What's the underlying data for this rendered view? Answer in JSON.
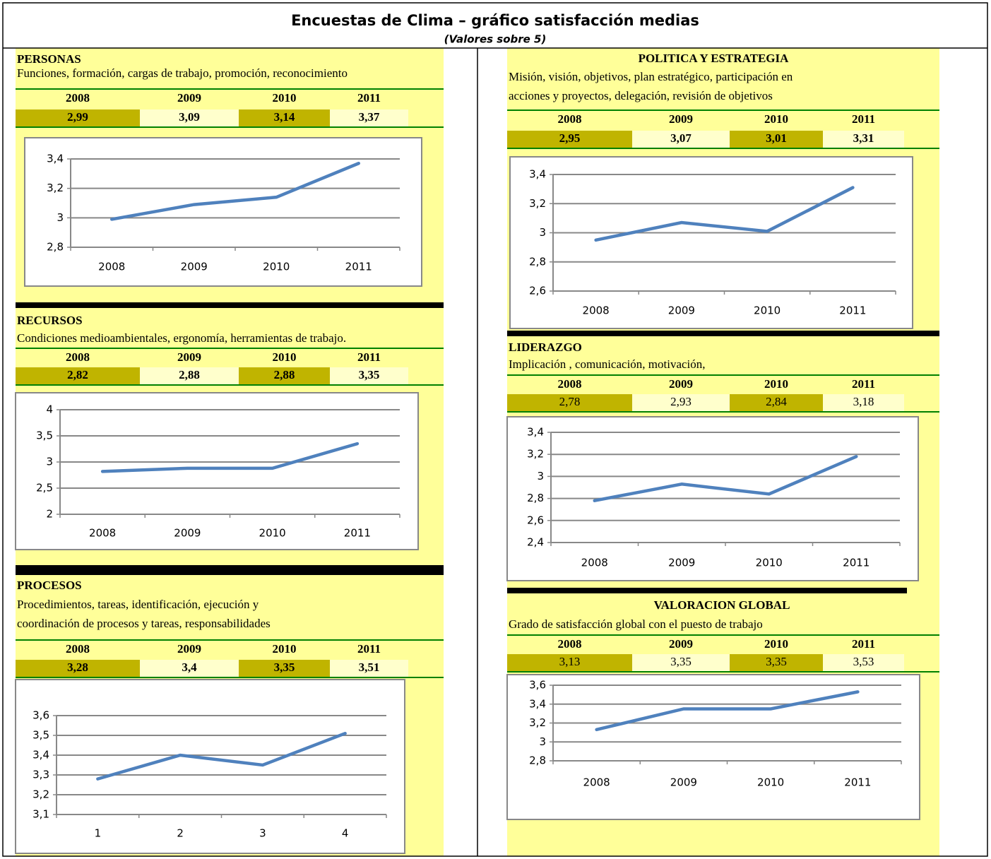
{
  "title": "Encuestas de Clima – gráfico satisfacción medias",
  "subtitle": "(Valores sobre 5)",
  "sections": [
    {
      "heading": "PERSONAS",
      "description": [
        "Funciones, formación, cargas de trabajo, promoción, reconocimiento"
      ],
      "table": {
        "header": [
          "2008",
          "2009",
          "2010",
          "2011"
        ],
        "row": [
          "2,99",
          "3,09",
          "3,14",
          "3,37"
        ]
      }
    },
    {
      "heading": "RECURSOS",
      "description": [
        "Condiciones medioambientales, ergonomía, herramientas de trabajo."
      ],
      "table": {
        "header": [
          "2008",
          "2009",
          "2010",
          "2011"
        ],
        "row": [
          "2,82",
          "2,88",
          "2,88",
          "3,35"
        ]
      }
    },
    {
      "heading": "PROCESOS",
      "description": [
        "Procedimientos, tareas, identificación, ejecución y",
        "coordinación de procesos y tareas, responsabilidades"
      ],
      "table": {
        "header": [
          "2008",
          "2009",
          "2010",
          "2011"
        ],
        "row": [
          "3,28",
          "3,4",
          "3,35",
          "3,51"
        ]
      }
    },
    {
      "heading": "POLITICA Y ESTRATEGIA",
      "description": [
        "Misión, visión, objetivos, plan estratégico, participación en",
        "acciones y proyectos, delegación, revisión de objetivos"
      ],
      "table": {
        "header": [
          "2008",
          "2009",
          "2010",
          "2011"
        ],
        "row": [
          "2,95",
          "3,07",
          "3,01",
          "3,31"
        ]
      }
    },
    {
      "heading": "LIDERAZGO",
      "description": [
        "Implicación , comunicación, motivación,"
      ],
      "table": {
        "header": [
          "2008",
          "2009",
          "2010",
          "2011"
        ],
        "row": [
          "2,78",
          "2,93",
          "2,84",
          "3,18"
        ]
      }
    },
    {
      "heading": "VALORACION GLOBAL",
      "description": [
        "Grado de satisfacción global con el puesto de trabajo"
      ],
      "table": {
        "header": [
          "2008",
          "2009",
          "2010",
          "2011"
        ],
        "row": [
          "3,13",
          "3,35",
          "3,35",
          "3,53"
        ]
      }
    }
  ],
  "chart_data": [
    {
      "type": "line",
      "color": "#4f81bd",
      "grid": true,
      "categories": [
        "2008",
        "2009",
        "2010",
        "2011"
      ],
      "values": [
        2.99,
        3.09,
        3.14,
        3.37
      ],
      "ylim": [
        2.8,
        3.4
      ],
      "yticks": [
        {
          "value": 2.8,
          "label": "2,8"
        },
        3,
        {
          "value": 3.2,
          "label": "3,2"
        },
        {
          "value": 3.4,
          "label": "3,4"
        }
      ]
    },
    {
      "type": "line",
      "color": "#4f81bd",
      "grid": true,
      "categories": [
        "2008",
        "2009",
        "2010",
        "2011"
      ],
      "values": [
        2.82,
        2.88,
        2.88,
        3.35
      ],
      "ylim": [
        2,
        4
      ],
      "yticks": [
        2,
        {
          "value": 2.5,
          "label": "2,5"
        },
        3,
        {
          "value": 3.5,
          "label": "3,5"
        },
        4
      ]
    },
    {
      "type": "line",
      "color": "#4f81bd",
      "grid": true,
      "categories": [
        "1",
        "2",
        "3",
        "4"
      ],
      "values": [
        3.28,
        3.4,
        3.35,
        3.51
      ],
      "ylim": [
        3.1,
        3.6
      ],
      "yticks": [
        {
          "value": 3.1,
          "label": "3,1"
        },
        {
          "value": 3.2,
          "label": "3,2"
        },
        {
          "value": 3.3,
          "label": "3,3"
        },
        {
          "value": 3.4,
          "label": "3,4"
        },
        {
          "value": 3.5,
          "label": "3,5"
        },
        {
          "value": 3.6,
          "label": "3,6"
        }
      ]
    },
    {
      "type": "line",
      "color": "#4f81bd",
      "grid": true,
      "categories": [
        "2008",
        "2009",
        "2010",
        "2011"
      ],
      "values": [
        2.95,
        3.07,
        3.01,
        3.31
      ],
      "ylim": [
        2.6,
        3.4
      ],
      "yticks": [
        {
          "value": 2.6,
          "label": "2,6"
        },
        {
          "value": 2.8,
          "label": "2,8"
        },
        3,
        {
          "value": 3.2,
          "label": "3,2"
        },
        {
          "value": 3.4,
          "label": "3,4"
        }
      ]
    },
    {
      "type": "line",
      "color": "#4f81bd",
      "grid": true,
      "categories": [
        "2008",
        "2009",
        "2010",
        "2011"
      ],
      "values": [
        2.78,
        2.93,
        2.84,
        3.18
      ],
      "ylim": [
        2.4,
        3.4
      ],
      "yticks": [
        {
          "value": 2.4,
          "label": "2,4"
        },
        {
          "value": 2.6,
          "label": "2,6"
        },
        {
          "value": 2.8,
          "label": "2,8"
        },
        3,
        {
          "value": 3.2,
          "label": "3,2"
        },
        {
          "value": 3.4,
          "label": "3,4"
        }
      ]
    },
    {
      "type": "line",
      "color": "#4f81bd",
      "grid": true,
      "categories": [
        "2008",
        "2009",
        "2010",
        "2011"
      ],
      "values": [
        3.13,
        3.35,
        3.35,
        3.53
      ],
      "ylim": [
        2.8,
        3.6
      ],
      "yticks": [
        {
          "value": 2.8,
          "label": "2,8"
        },
        3,
        {
          "value": 3.2,
          "label": "3,2"
        },
        {
          "value": 3.4,
          "label": "3,4"
        },
        {
          "value": 3.6,
          "label": "3,6"
        }
      ]
    }
  ]
}
